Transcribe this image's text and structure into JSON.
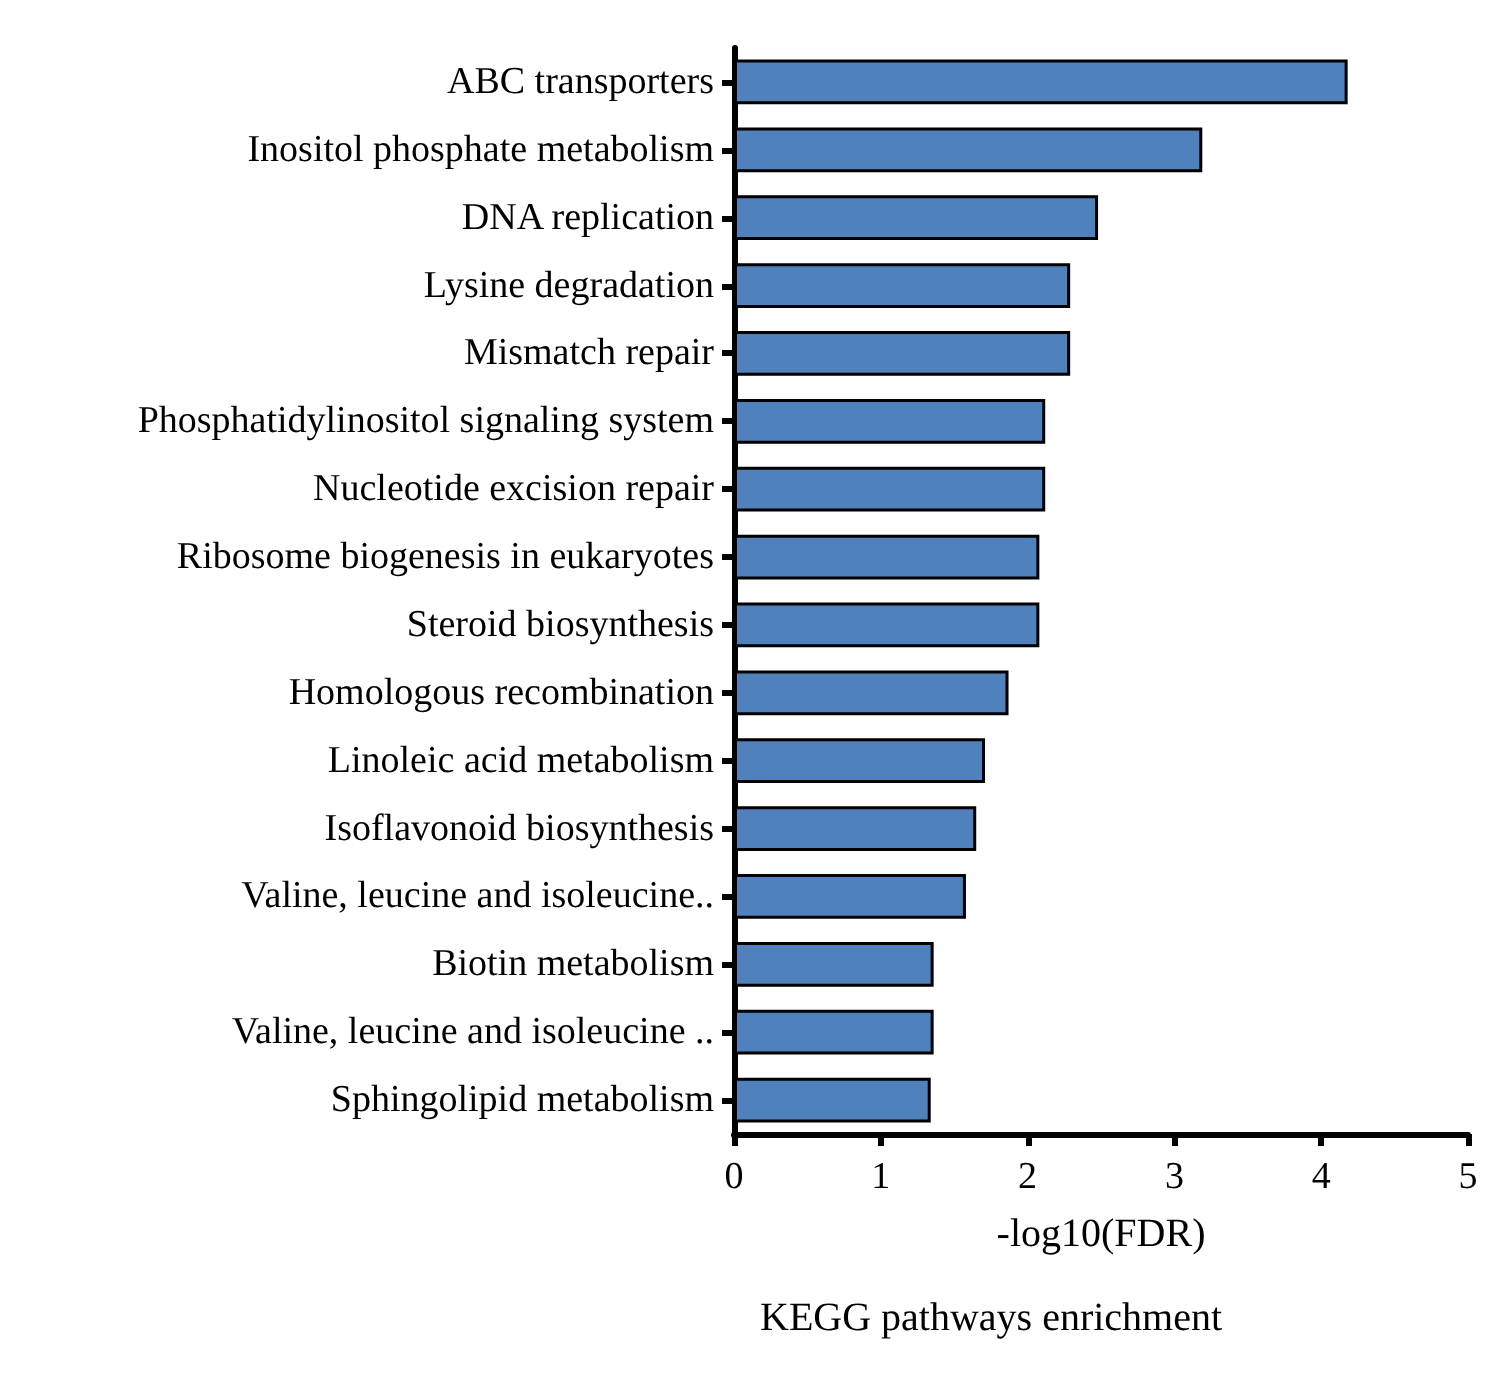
{
  "chart_data": {
    "type": "bar",
    "orientation": "horizontal",
    "title": "KEGG pathways enrichment",
    "xlabel": "-log10(FDR)",
    "categories": [
      "ABC transporters",
      "Inositol phosphate metabolism",
      "DNA replication",
      "Lysine degradation",
      "Mismatch repair",
      "Phosphatidylinositol signaling system",
      "Nucleotide excision repair",
      "Ribosome biogenesis in eukaryotes",
      "Steroid biosynthesis",
      "Homologous recombination",
      "Linoleic acid metabolism",
      "Isoflavonoid biosynthesis",
      "Valine, leucine and isoleucine..",
      "Biotin metabolism",
      "Valine, leucine and isoleucine ..",
      "Sphingolipid metabolism"
    ],
    "values": [
      4.18,
      3.19,
      2.48,
      2.29,
      2.29,
      2.12,
      2.12,
      2.08,
      2.08,
      1.87,
      1.71,
      1.65,
      1.58,
      1.36,
      1.36,
      1.34
    ],
    "color": "#4f81bd",
    "xlim": [
      0,
      5
    ],
    "xticks": [
      0,
      1,
      2,
      3,
      4,
      5
    ]
  }
}
